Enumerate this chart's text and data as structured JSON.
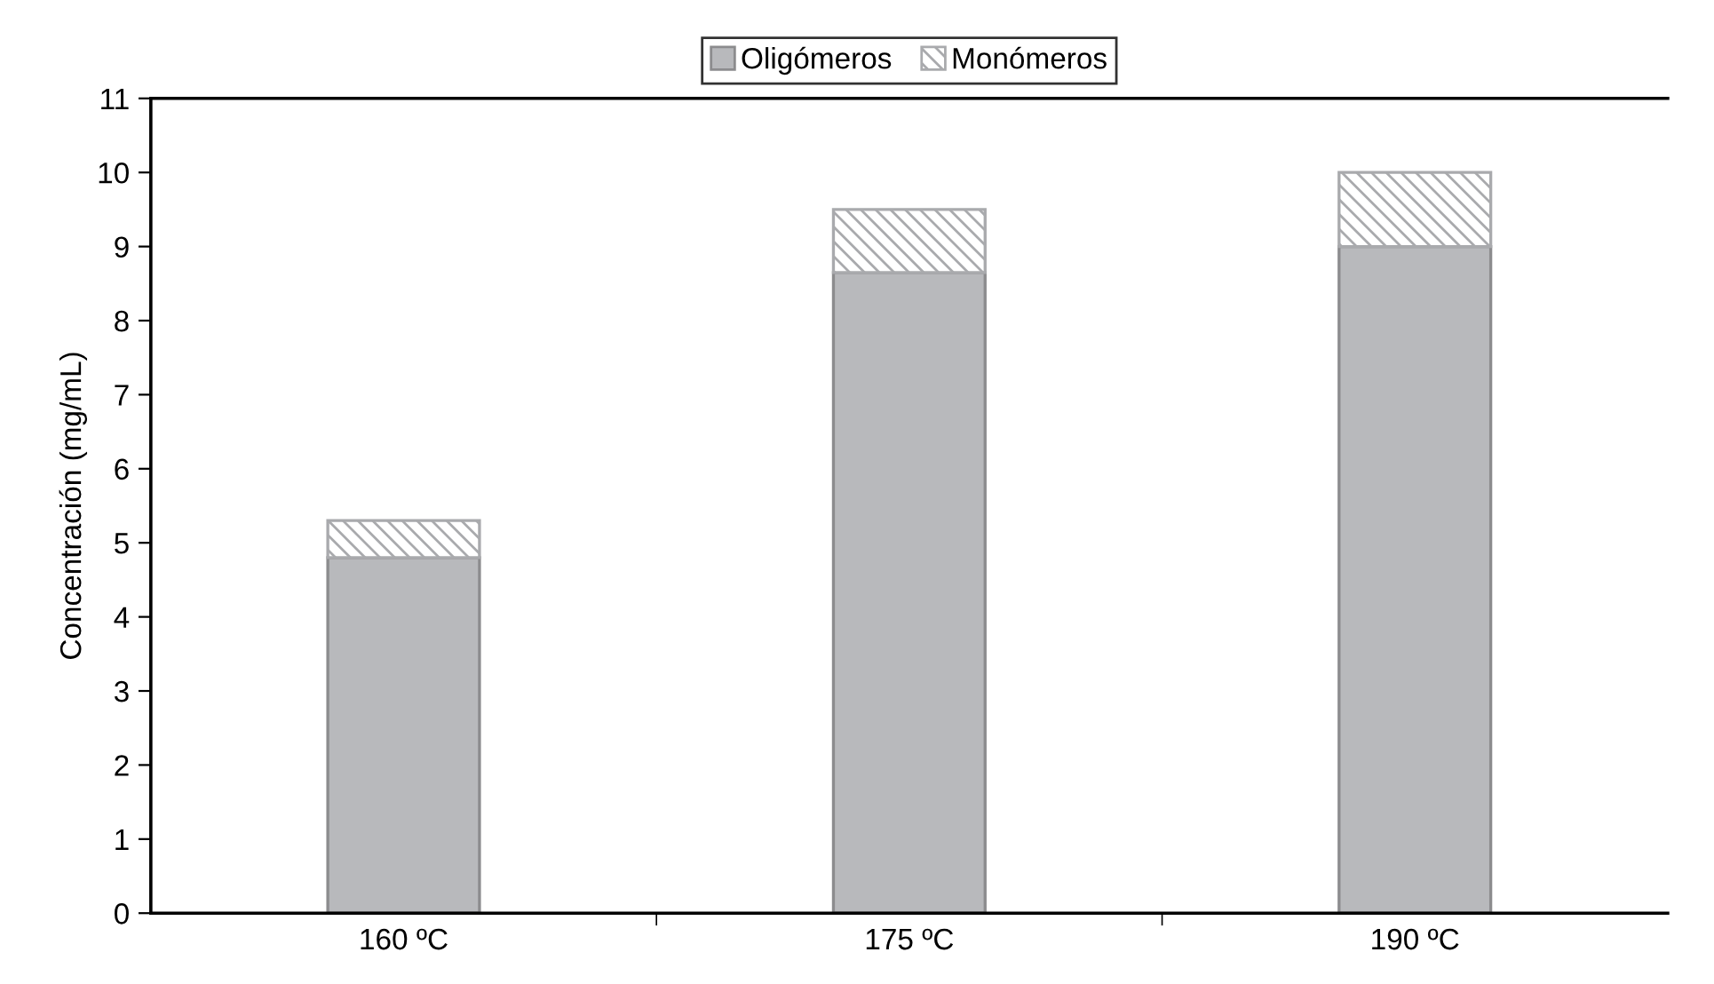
{
  "chart_data": {
    "type": "bar",
    "stacked": true,
    "ylabel": "Concentración (mg/mL)",
    "categories": [
      "160 ºC",
      "175 ºC",
      "190 ºC"
    ],
    "series": [
      {
        "name": "Oligómeros",
        "color": "#b8b9bc",
        "values": [
          4.8,
          8.65,
          9.0
        ]
      },
      {
        "name": "Monómeros",
        "color": "#a9aaad",
        "values": [
          0.5,
          0.85,
          1.0
        ]
      }
    ],
    "ylim": [
      0,
      11
    ],
    "yticks": [
      0,
      1,
      2,
      3,
      4,
      5,
      6,
      7,
      8,
      9,
      10,
      11
    ],
    "grid": false,
    "legend": "top"
  }
}
